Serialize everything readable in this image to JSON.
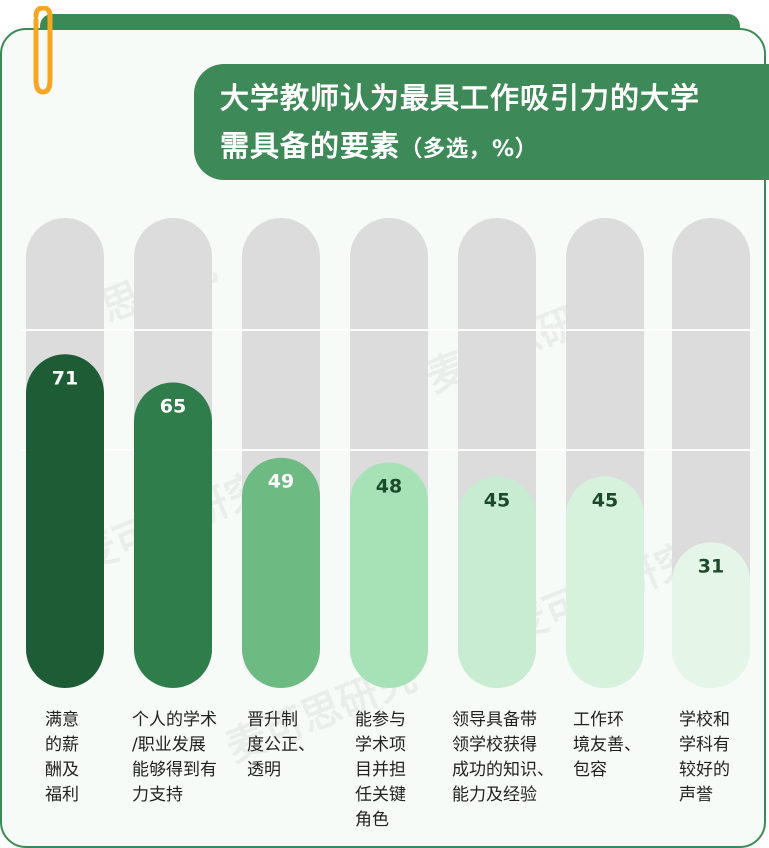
{
  "title": {
    "line1": "大学教师认为最具工作吸引力的大学",
    "line2_main": "需具备的要素",
    "line2_sub": "（多选，%）"
  },
  "watermark_text": "麦可思研究",
  "colors": {
    "frame": "#3b8a55",
    "track": "#dcdcdc",
    "bars": [
      "#1d5c34",
      "#2f7d4a",
      "#6dbb82",
      "#a6e2b6",
      "#c7ecd1",
      "#d6f2dd",
      "#e5f6e9"
    ],
    "value_text_dark": "#ffffff",
    "value_text_light": "#1e4a2c"
  },
  "chart_data": {
    "type": "bar",
    "orientation": "vertical",
    "ylim": [
      0,
      100
    ],
    "grid": false,
    "categories": [
      [
        "满意",
        "的薪",
        "酬及",
        "福利"
      ],
      [
        "个人的学术",
        "/职业发展",
        "能够得到有",
        "力支持"
      ],
      [
        "晋升制",
        "度公正、",
        "透明"
      ],
      [
        "能参与",
        "学术项",
        "目并担",
        "任关键",
        "角色"
      ],
      [
        "领导具备带",
        "领学校获得",
        "成功的知识、",
        "能力及经验"
      ],
      [
        "工作环",
        "境友善、",
        "包容"
      ],
      [
        "学校和",
        "学科有",
        "较好的",
        "声誉"
      ]
    ],
    "values": [
      71,
      65,
      49,
      48,
      45,
      45,
      31
    ],
    "value_labels": [
      "71",
      "65",
      "49",
      "48",
      "45",
      "45",
      "31"
    ]
  }
}
